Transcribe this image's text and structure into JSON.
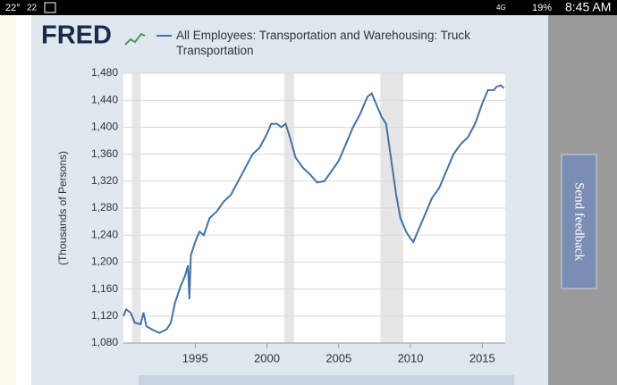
{
  "status_bar": {
    "temp": "22°",
    "temp2": "22",
    "network": "4G",
    "battery": "19%",
    "time": "8:45 AM"
  },
  "feedback_button": "Send feedback",
  "chart_data": {
    "type": "line",
    "logo": "FRED",
    "title": "All Employees: Transportation and Warehousing: Truck Transportation",
    "y_label": "(Thousands of Persons)",
    "series": [
      {
        "name": "All Employees: Transportation and Warehousing: Truck Transportation",
        "color": "#4572a7",
        "x": [
          1990.0,
          1990.2,
          1990.5,
          1990.8,
          1991.2,
          1991.4,
          1991.6,
          1992.0,
          1992.5,
          1993.0,
          1993.3,
          1993.6,
          1994.0,
          1994.3,
          1994.5,
          1994.6,
          1994.7,
          1995.0,
          1995.3,
          1995.6,
          1996.0,
          1996.5,
          1997.0,
          1997.5,
          1998.0,
          1998.5,
          1999.0,
          1999.5,
          2000.0,
          2000.3,
          2000.7,
          2001.0,
          2001.3,
          2001.6,
          2002.0,
          2002.5,
          2003.0,
          2003.5,
          2004.0,
          2004.5,
          2005.0,
          2005.5,
          2006.0,
          2006.5,
          2007.0,
          2007.3,
          2007.6,
          2008.0,
          2008.3,
          2008.6,
          2009.0,
          2009.3,
          2009.7,
          2010.0,
          2010.2,
          2010.5,
          2011.0,
          2011.5,
          2012.0,
          2012.5,
          2013.0,
          2013.5,
          2014.0,
          2014.5,
          2015.0,
          2015.4,
          2015.8,
          2016.0,
          2016.3,
          2016.5
        ],
        "values": [
          1120,
          1130,
          1125,
          1110,
          1108,
          1125,
          1105,
          1100,
          1095,
          1100,
          1110,
          1140,
          1165,
          1180,
          1195,
          1145,
          1210,
          1230,
          1245,
          1240,
          1265,
          1275,
          1290,
          1300,
          1320,
          1340,
          1360,
          1370,
          1390,
          1405,
          1405,
          1400,
          1405,
          1385,
          1355,
          1340,
          1330,
          1318,
          1320,
          1335,
          1350,
          1375,
          1400,
          1420,
          1445,
          1450,
          1435,
          1415,
          1405,
          1360,
          1300,
          1265,
          1245,
          1235,
          1230,
          1245,
          1270,
          1295,
          1310,
          1335,
          1360,
          1375,
          1385,
          1405,
          1435,
          1455,
          1455,
          1460,
          1462,
          1458
        ]
      }
    ],
    "recessions": [
      [
        1990.6,
        1991.2
      ],
      [
        2001.2,
        2001.9
      ],
      [
        2007.9,
        2009.5
      ]
    ],
    "recession_color": "#e6e6e6",
    "xlim": [
      1990.0,
      2016.6
    ],
    "xticks": [
      1995,
      2000,
      2005,
      2010,
      2015
    ],
    "ylim": [
      1080,
      1480
    ],
    "yticks": [
      {
        "value": 1080,
        "label": "1,080"
      },
      {
        "value": 1120,
        "label": "1,120"
      },
      {
        "value": 1160,
        "label": "1,160"
      },
      {
        "value": 1200,
        "label": "1,200"
      },
      {
        "value": 1240,
        "label": "1,240"
      },
      {
        "value": 1280,
        "label": "1,280"
      },
      {
        "value": 1320,
        "label": "1,320"
      },
      {
        "value": 1360,
        "label": "1,360"
      },
      {
        "value": 1400,
        "label": "1,400"
      },
      {
        "value": 1440,
        "label": "1,440"
      },
      {
        "value": 1480,
        "label": "1,480"
      }
    ],
    "grid": true
  }
}
